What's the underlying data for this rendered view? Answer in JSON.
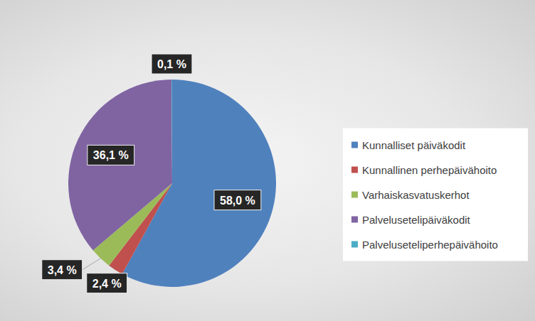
{
  "chart_data": {
    "type": "pie",
    "categories": [
      "Kunnalliset päiväkodit",
      "Kunnallinen perhepäivähoito",
      "Varhaiskasvatuskerhot",
      "Palvelusetelipäiväkodit",
      "Palveluseteliperhepäivähoito"
    ],
    "values": [
      58.0,
      2.4,
      3.4,
      36.1,
      0.1
    ],
    "value_labels": [
      "58,0 %",
      "2,4 %",
      "3,4 %",
      "36,1 %",
      "0,1 %"
    ],
    "colors": [
      "#4f81bd",
      "#c0504d",
      "#9bbb59",
      "#8064a2",
      "#4bacc6"
    ],
    "data_labels": true,
    "legend": "right"
  }
}
